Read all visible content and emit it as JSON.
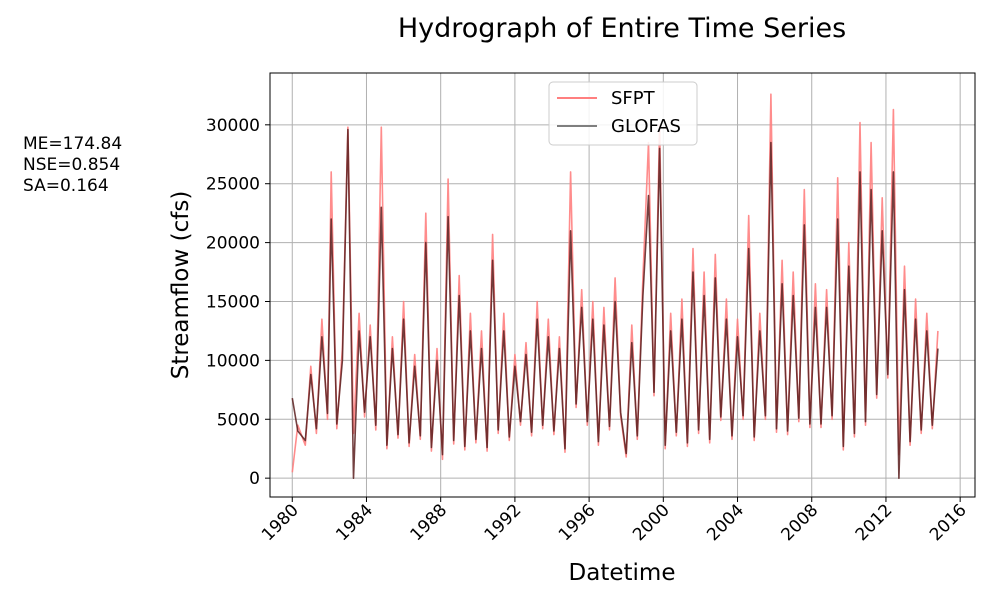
{
  "chart_data": {
    "type": "line",
    "title": "Hydrograph of Entire Time Series",
    "xlabel": "Datetime",
    "ylabel": "Streamflow (cfs)",
    "xlim": [
      1978.8,
      2016.8
    ],
    "ylim": [
      -1600,
      34400
    ],
    "xticks": [
      1980,
      1984,
      1988,
      1992,
      1996,
      2000,
      2004,
      2008,
      2012,
      2016
    ],
    "yticks": [
      0,
      5000,
      10000,
      15000,
      20000,
      25000,
      30000
    ],
    "grid": true,
    "legend_position": "top-center",
    "series": [
      {
        "name": "SFPT",
        "color": "#ff7f7f",
        "x": [
          1980.0,
          1980.3,
          1980.7,
          1981.0,
          1981.3,
          1981.6,
          1981.9,
          1982.1,
          1982.4,
          1982.7,
          1983.0,
          1983.3,
          1983.6,
          1983.9,
          1984.2,
          1984.5,
          1984.8,
          1985.1,
          1985.4,
          1985.7,
          1986.0,
          1986.3,
          1986.6,
          1986.9,
          1987.2,
          1987.5,
          1987.8,
          1988.1,
          1988.4,
          1988.7,
          1989.0,
          1989.3,
          1989.6,
          1989.9,
          1990.2,
          1990.5,
          1990.8,
          1991.1,
          1991.4,
          1991.7,
          1992.0,
          1992.3,
          1992.6,
          1992.9,
          1993.2,
          1993.5,
          1993.8,
          1994.1,
          1994.4,
          1994.7,
          1995.0,
          1995.3,
          1995.6,
          1995.9,
          1996.2,
          1996.5,
          1996.8,
          1997.1,
          1997.4,
          1997.7,
          1998.0,
          1998.3,
          1998.6,
          1998.9,
          1999.2,
          1999.5,
          1999.8,
          2000.1,
          2000.4,
          2000.7,
          2001.0,
          2001.3,
          2001.6,
          2001.9,
          2002.2,
          2002.5,
          2002.8,
          2003.1,
          2003.4,
          2003.7,
          2004.0,
          2004.3,
          2004.6,
          2004.9,
          2005.2,
          2005.5,
          2005.8,
          2006.1,
          2006.4,
          2006.7,
          2007.0,
          2007.3,
          2007.6,
          2007.9,
          2008.2,
          2008.5,
          2008.8,
          2009.1,
          2009.4,
          2009.7,
          2010.0,
          2010.3,
          2010.6,
          2010.9,
          2011.2,
          2011.5,
          2011.8,
          2012.1,
          2012.4,
          2012.7,
          2013.0,
          2013.3,
          2013.6,
          2013.9,
          2014.2,
          2014.5,
          2014.8
        ],
        "values": [
          500,
          4500,
          2800,
          9500,
          3800,
          13500,
          5000,
          26000,
          4200,
          11000,
          29800,
          3800,
          14000,
          5200,
          13000,
          4100,
          29800,
          2500,
          12000,
          3400,
          15000,
          2700,
          10500,
          3300,
          22500,
          2300,
          11000,
          1600,
          25400,
          2900,
          17200,
          2400,
          14000,
          3000,
          12500,
          2300,
          20700,
          3800,
          14000,
          3200,
          10500,
          4500,
          11500,
          3600,
          15000,
          4200,
          13500,
          3700,
          12000,
          2200,
          26000,
          6000,
          16000,
          4500,
          15000,
          2800,
          14500,
          4100,
          17000,
          5300,
          1800,
          13000,
          3300,
          17000,
          28500,
          7000,
          30000,
          2500,
          14000,
          3600,
          15200,
          2700,
          19500,
          3800,
          17500,
          3000,
          19000,
          4900,
          15200,
          3300,
          13500,
          5000,
          22300,
          3200,
          14000,
          5000,
          32600,
          3900,
          18500,
          3700,
          17500,
          4800,
          24500,
          4300,
          16500,
          4300,
          16000,
          5000,
          25500,
          2400,
          20000,
          3500,
          30200,
          4500,
          28500,
          6800,
          23800,
          8500,
          31300,
          2000,
          18000,
          2800,
          15200,
          3800,
          14000,
          4200,
          12500
        ]
      },
      {
        "name": "GLOFAS",
        "color": "#7f7f7f",
        "x": [
          1980.0,
          1980.3,
          1980.7,
          1981.0,
          1981.3,
          1981.6,
          1981.9,
          1982.1,
          1982.4,
          1982.7,
          1983.0,
          1983.3,
          1983.6,
          1983.9,
          1984.2,
          1984.5,
          1984.8,
          1985.1,
          1985.4,
          1985.7,
          1986.0,
          1986.3,
          1986.6,
          1986.9,
          1987.2,
          1987.5,
          1987.8,
          1988.1,
          1988.4,
          1988.7,
          1989.0,
          1989.3,
          1989.6,
          1989.9,
          1990.2,
          1990.5,
          1990.8,
          1991.1,
          1991.4,
          1991.7,
          1992.0,
          1992.3,
          1992.6,
          1992.9,
          1993.2,
          1993.5,
          1993.8,
          1994.1,
          1994.4,
          1994.7,
          1995.0,
          1995.3,
          1995.6,
          1995.9,
          1996.2,
          1996.5,
          1996.8,
          1997.1,
          1997.4,
          1997.7,
          1998.0,
          1998.3,
          1998.6,
          1998.9,
          1999.2,
          1999.5,
          1999.8,
          2000.1,
          2000.4,
          2000.7,
          2001.0,
          2001.3,
          2001.6,
          2001.9,
          2002.2,
          2002.5,
          2002.8,
          2003.1,
          2003.4,
          2003.7,
          2004.0,
          2004.3,
          2004.6,
          2004.9,
          2005.2,
          2005.5,
          2005.8,
          2006.1,
          2006.4,
          2006.7,
          2007.0,
          2007.3,
          2007.6,
          2007.9,
          2008.2,
          2008.5,
          2008.8,
          2009.1,
          2009.4,
          2009.7,
          2010.0,
          2010.3,
          2010.6,
          2010.9,
          2011.2,
          2011.5,
          2011.8,
          2012.1,
          2012.4,
          2012.7,
          2013.0,
          2013.3,
          2013.6,
          2013.9,
          2014.2,
          2014.5,
          2014.8
        ],
        "values": [
          6800,
          4000,
          3200,
          8800,
          4200,
          12000,
          5500,
          22000,
          4600,
          10000,
          29600,
          0,
          12500,
          5600,
          12000,
          4500,
          23000,
          2800,
          11000,
          3700,
          13500,
          3000,
          9500,
          3600,
          20000,
          2600,
          10000,
          2000,
          22200,
          3200,
          15500,
          2700,
          12500,
          3300,
          11000,
          2600,
          18500,
          4100,
          12500,
          3500,
          9500,
          4800,
          10500,
          3900,
          13500,
          4500,
          12000,
          4000,
          11000,
          2500,
          21000,
          6300,
          14500,
          4800,
          13500,
          3100,
          13000,
          4400,
          15000,
          5600,
          2100,
          11500,
          3600,
          15500,
          24000,
          7300,
          28000,
          2800,
          12500,
          3900,
          13500,
          3000,
          17500,
          4100,
          15500,
          3300,
          17000,
          5200,
          13500,
          3600,
          12000,
          5300,
          19500,
          3500,
          12500,
          5300,
          28500,
          4200,
          16500,
          4000,
          15500,
          5100,
          21500,
          4600,
          14500,
          4600,
          14500,
          5300,
          22000,
          2700,
          18000,
          3800,
          26000,
          4800,
          24500,
          7100,
          21000,
          8800,
          26000,
          0,
          16000,
          3100,
          13500,
          4100,
          12500,
          4500,
          11000
        ]
      }
    ]
  },
  "stats": {
    "me": "ME=174.84",
    "nse": "NSE=0.854",
    "sa": "SA=0.164"
  }
}
